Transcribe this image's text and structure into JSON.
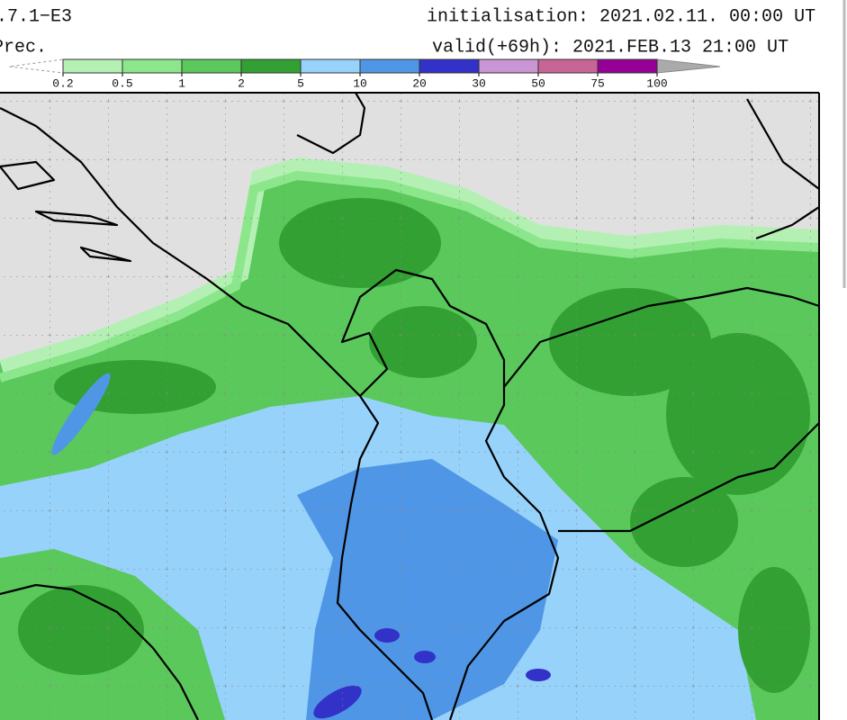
{
  "header": {
    "model": ".7.1−E3",
    "variable": "Prec.",
    "initialisation": "initialisation: 2021.02.11.  00:00 UT",
    "valid": "valid(+69h): 2021.FEB.13 21:00 UT"
  },
  "legend": {
    "ticks": [
      "0.2",
      "0.5",
      "1",
      "2",
      "5",
      "10",
      "20",
      "30",
      "50",
      "75",
      "100"
    ],
    "colors": [
      "#b4f0b4",
      "#8ce68c",
      "#5ac85a",
      "#32a032",
      "#96d2fa",
      "#5096e6",
      "#3232c8",
      "#c896d2",
      "#c86496",
      "#960096"
    ]
  }
}
